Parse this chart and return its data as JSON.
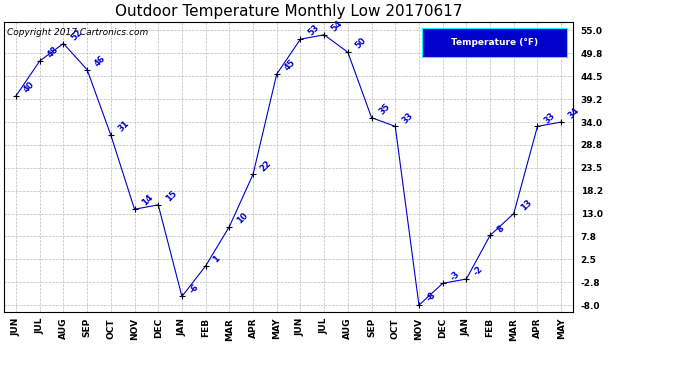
{
  "title": "Outdoor Temperature Monthly Low 20170617",
  "copyright": "Copyright 2017 Cartronics.com",
  "legend_label": "Temperature (°F)",
  "months": [
    "JUN",
    "JUL",
    "AUG",
    "SEP",
    "OCT",
    "NOV",
    "DEC",
    "JAN",
    "FEB",
    "MAR",
    "APR",
    "MAY",
    "JUN",
    "JUL",
    "AUG",
    "SEP",
    "OCT",
    "NOV",
    "DEC",
    "JAN",
    "FEB",
    "MAR",
    "APR",
    "MAY"
  ],
  "values": [
    40,
    48,
    52,
    46,
    31,
    14,
    15,
    -6,
    1,
    10,
    22,
    45,
    53,
    54,
    50,
    35,
    33,
    -8,
    -3,
    -2,
    8,
    13,
    33,
    34
  ],
  "ylim": [
    -9.5,
    57.0
  ],
  "yticks": [
    55.0,
    49.8,
    44.5,
    39.2,
    34.0,
    28.8,
    23.5,
    18.2,
    13.0,
    7.8,
    2.5,
    -2.8,
    -8.0
  ],
  "line_color": "#0000cc",
  "marker_color": "#000000",
  "bg_color": "#ffffff",
  "grid_color": "#bbbbbb",
  "title_fontsize": 11,
  "label_fontsize": 7,
  "copyright_fontsize": 6.5,
  "legend_bg": "#0000cc",
  "legend_text_color": "#ffffff"
}
